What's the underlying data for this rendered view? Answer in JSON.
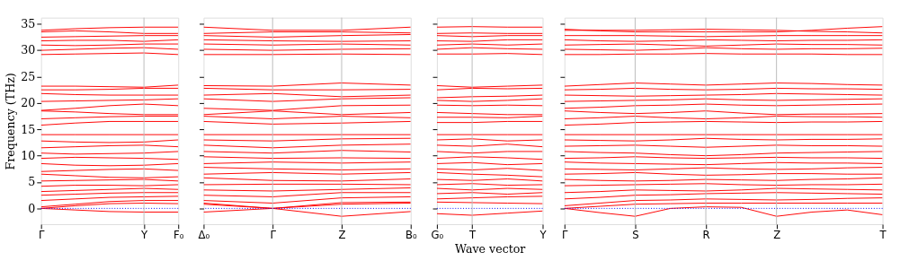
{
  "chart_data": [
    {
      "type": "line",
      "ylabel": "Frequency (THz)",
      "categories": [
        "Γ",
        null,
        null,
        "Y",
        "F₀"
      ],
      "ylim": [
        -3,
        36.2
      ],
      "yticks": [
        0,
        5,
        10,
        15,
        20,
        25,
        30,
        35
      ],
      "line_style": "solid",
      "marker": "none",
      "ref_lines": [
        {
          "axis": "y",
          "value": 0,
          "label": null,
          "color": "#0000ff",
          "line_style": "dotted"
        },
        {
          "axis": "x",
          "value": "Y",
          "label": null,
          "color": "#bbbbbb",
          "line_style": "solid"
        }
      ],
      "series": [
        {
          "color": "#ff0000",
          "values": [
            0,
            0.5,
            0.9,
            1.0,
            0.9
          ]
        },
        {
          "color": "#ff0000",
          "values": [
            0,
            -0.3,
            -0.6,
            -0.7,
            -0.7
          ]
        },
        {
          "color": "#ff0000",
          "values": [
            0.3,
            0.8,
            1.3,
            1.5,
            1.5
          ]
        },
        {
          "color": "#ff0000",
          "values": [
            1.5,
            1.8,
            2.1,
            2.2,
            2.3
          ]
        },
        {
          "color": "#ff0000",
          "values": [
            2.5,
            2.7,
            2.9,
            3,
            3
          ]
        },
        {
          "color": "#ff0000",
          "values": [
            3.2,
            3.4,
            3.6,
            3.8,
            3.6
          ]
        },
        {
          "color": "#ff0000",
          "values": [
            4.2,
            4.4,
            4.4,
            4.3,
            4.5
          ]
        },
        {
          "color": "#ff0000",
          "values": [
            5.2,
            5.3,
            5.4,
            5.5,
            5.2
          ]
        },
        {
          "color": "#ff0000",
          "values": [
            6.5,
            6.2,
            5.9,
            5.8,
            6
          ]
        },
        {
          "color": "#ff0000",
          "values": [
            7,
            7.2,
            7.4,
            7.5,
            7.2
          ]
        },
        {
          "color": "#ff0000",
          "values": [
            8.5,
            8.2,
            8.1,
            8.2,
            8.5
          ]
        },
        {
          "color": "#ff0000",
          "values": [
            9.5,
            9.7,
            9.6,
            9.5,
            9.3
          ]
        },
        {
          "color": "#ff0000",
          "values": [
            10.5,
            10.3,
            10.4,
            10.5,
            10.8
          ]
        },
        {
          "color": "#ff0000",
          "values": [
            11.5,
            11.7,
            11.9,
            12,
            11.7
          ]
        },
        {
          "color": "#ff0000",
          "values": [
            12.8,
            12.6,
            12.5,
            12.6,
            13
          ]
        },
        {
          "color": "#ff0000",
          "values": [
            14,
            14,
            14,
            14,
            14
          ]
        },
        {
          "color": "#ff0000",
          "values": [
            15.8,
            16.2,
            16.5,
            16.5,
            16.5
          ]
        },
        {
          "color": "#ff0000",
          "values": [
            17,
            17.2,
            17.4,
            17.5,
            17.5
          ]
        },
        {
          "color": "#ff0000",
          "values": [
            18.5,
            18.3,
            18,
            17.8,
            17.8
          ]
        },
        {
          "color": "#ff0000",
          "values": [
            18.6,
            19,
            19.5,
            19.8,
            19.5
          ]
        },
        {
          "color": "#ff0000",
          "values": [
            20.3,
            20.4,
            20.5,
            20.6,
            20.8
          ]
        },
        {
          "color": "#ff0000",
          "values": [
            21.8,
            21.6,
            21.5,
            21.5,
            21.5
          ]
        },
        {
          "color": "#ff0000",
          "values": [
            22.5,
            22.5,
            22.6,
            22.8,
            22.8
          ]
        },
        {
          "color": "#ff0000",
          "values": [
            23.2,
            23.2,
            23.1,
            23,
            23.4
          ]
        },
        {
          "color": "#ff0000",
          "values": [
            29.2,
            29.3,
            29.4,
            29.5,
            29.2
          ]
        },
        {
          "color": "#ff0000",
          "values": [
            30,
            30.2,
            30.4,
            30.5,
            30.2
          ]
        },
        {
          "color": "#ff0000",
          "values": [
            31,
            30.9,
            31,
            31.2,
            31.2
          ]
        },
        {
          "color": "#ff0000",
          "values": [
            31.8,
            31.9,
            31.9,
            31.7,
            32
          ]
        },
        {
          "color": "#ff0000",
          "values": [
            32.5,
            32.6,
            32.7,
            32.8,
            32.8
          ]
        },
        {
          "color": "#ff0000",
          "values": [
            33.5,
            33.7,
            33.5,
            33.2,
            33.2
          ]
        },
        {
          "color": "#ff0000",
          "values": [
            33.8,
            34.1,
            34.3,
            34.4,
            34.4
          ]
        }
      ]
    },
    {
      "type": "line",
      "categories": [
        "Δ₀",
        "Γ",
        "Z",
        "B₀"
      ],
      "ylim": [
        -3,
        36.2
      ],
      "yticks": [
        0,
        5,
        10,
        15,
        20,
        25,
        30,
        35
      ],
      "tick_labels": "x",
      "line_style": "solid",
      "marker": "none",
      "ref_lines": [
        {
          "axis": "y",
          "value": 0,
          "label": null,
          "color": "#0000ff",
          "line_style": "dotted"
        },
        {
          "axis": "x",
          "value": "Γ",
          "label": null,
          "color": "#bbbbbb",
          "line_style": "solid"
        },
        {
          "axis": "x",
          "value": "Z",
          "label": null,
          "color": "#bbbbbb",
          "line_style": "solid"
        }
      ],
      "series": [
        {
          "color": "#ff0000",
          "values": [
            -0.7,
            0,
            -1.5,
            -0.6
          ]
        },
        {
          "color": "#ff0000",
          "values": [
            1,
            0,
            0.8,
            1
          ]
        },
        {
          "color": "#ff0000",
          "values": [
            0.8,
            0,
            1.1,
            1.2
          ]
        },
        {
          "color": "#ff0000",
          "values": [
            1.5,
            1,
            2,
            2.2
          ]
        },
        {
          "color": "#ff0000",
          "values": [
            2.5,
            2.2,
            3,
            3
          ]
        },
        {
          "color": "#ff0000",
          "values": [
            3.5,
            3.3,
            3.6,
            3.9
          ]
        },
        {
          "color": "#ff0000",
          "values": [
            4.5,
            4.6,
            4.6,
            4.5
          ]
        },
        {
          "color": "#ff0000",
          "values": [
            5.8,
            5.3,
            5.2,
            5.6
          ]
        },
        {
          "color": "#ff0000",
          "values": [
            6.5,
            6.8,
            6.5,
            6.8
          ]
        },
        {
          "color": "#ff0000",
          "values": [
            7.8,
            7.5,
            7.3,
            7.5
          ]
        },
        {
          "color": "#ff0000",
          "values": [
            8.5,
            8.8,
            8.6,
            8.8
          ]
        },
        {
          "color": "#ff0000",
          "values": [
            9.8,
            9.5,
            9.6,
            9.5
          ]
        },
        {
          "color": "#ff0000",
          "values": [
            10.8,
            10.5,
            11,
            10.7
          ]
        },
        {
          "color": "#ff0000",
          "values": [
            12,
            11.5,
            12,
            12.2
          ]
        },
        {
          "color": "#ff0000",
          "values": [
            13,
            12.8,
            13.2,
            13.3
          ]
        },
        {
          "color": "#ff0000",
          "values": [
            14,
            14,
            14,
            14
          ]
        },
        {
          "color": "#ff0000",
          "values": [
            16.5,
            16,
            16.2,
            16.5
          ]
        },
        {
          "color": "#ff0000",
          "values": [
            17.5,
            17,
            17.5,
            17.2
          ]
        },
        {
          "color": "#ff0000",
          "values": [
            17.8,
            18.5,
            17.8,
            18.2
          ]
        },
        {
          "color": "#ff0000",
          "values": [
            19,
            18.6,
            19.5,
            19.6
          ]
        },
        {
          "color": "#ff0000",
          "values": [
            20.8,
            20.3,
            20.8,
            21
          ]
        },
        {
          "color": "#ff0000",
          "values": [
            21.5,
            21.8,
            21.2,
            21.5
          ]
        },
        {
          "color": "#ff0000",
          "values": [
            22.8,
            22.5,
            22.5,
            22.6
          ]
        },
        {
          "color": "#ff0000",
          "values": [
            23.3,
            23.2,
            23.8,
            23.4
          ]
        },
        {
          "color": "#ff0000",
          "values": [
            29.2,
            29.2,
            29.3,
            29.2
          ]
        },
        {
          "color": "#ff0000",
          "values": [
            30.2,
            30,
            30.2,
            30.3
          ]
        },
        {
          "color": "#ff0000",
          "values": [
            31.2,
            31,
            31.2,
            31
          ]
        },
        {
          "color": "#ff0000",
          "values": [
            32,
            31.8,
            31.7,
            31.8
          ]
        },
        {
          "color": "#ff0000",
          "values": [
            32.8,
            32.5,
            32.8,
            33
          ]
        },
        {
          "color": "#ff0000",
          "values": [
            33.2,
            33.5,
            33.5,
            33.3
          ]
        },
        {
          "color": "#ff0000",
          "values": [
            34.4,
            33.8,
            33.8,
            34.4
          ]
        }
      ]
    },
    {
      "type": "line",
      "xlabel": "Wave vector",
      "categories": [
        "G₀",
        "T",
        null,
        "Y"
      ],
      "ylim": [
        -3,
        36.2
      ],
      "yticks": [
        0,
        5,
        10,
        15,
        20,
        25,
        30,
        35
      ],
      "tick_labels": "x",
      "line_style": "solid",
      "marker": "none",
      "ref_lines": [
        {
          "axis": "y",
          "value": 0,
          "label": null,
          "color": "#0000ff",
          "line_style": "dotted"
        },
        {
          "axis": "x",
          "value": "T",
          "label": null,
          "color": "#bbbbbb",
          "line_style": "solid"
        }
      ],
      "series": [
        {
          "color": "#ff0000",
          "values": [
            -1,
            -1.3,
            -0.9,
            -0.5
          ]
        },
        {
          "color": "#ff0000",
          "values": [
            1.2,
            1.1,
            1,
            0.9
          ]
        },
        {
          "color": "#ff0000",
          "values": [
            1.8,
            2,
            2.2,
            2.3
          ]
        },
        {
          "color": "#ff0000",
          "values": [
            2.8,
            3,
            2.7,
            3
          ]
        },
        {
          "color": "#ff0000",
          "values": [
            3.8,
            3.5,
            3.8,
            3.6
          ]
        },
        {
          "color": "#ff0000",
          "values": [
            4.5,
            4.7,
            4.4,
            4.5
          ]
        },
        {
          "color": "#ff0000",
          "values": [
            5.5,
            5.3,
            5.6,
            5.2
          ]
        },
        {
          "color": "#ff0000",
          "values": [
            6.8,
            6.5,
            6.3,
            6
          ]
        },
        {
          "color": "#ff0000",
          "values": [
            7.5,
            7.3,
            7.6,
            7.2
          ]
        },
        {
          "color": "#ff0000",
          "values": [
            8.5,
            8.7,
            8.3,
            8.5
          ]
        },
        {
          "color": "#ff0000",
          "values": [
            9.5,
            9.8,
            9.6,
            9.3
          ]
        },
        {
          "color": "#ff0000",
          "values": [
            10.8,
            10.5,
            10.8,
            10.8
          ]
        },
        {
          "color": "#ff0000",
          "values": [
            12,
            11.8,
            12.2,
            11.7
          ]
        },
        {
          "color": "#ff0000",
          "values": [
            13,
            13.2,
            12.8,
            13
          ]
        },
        {
          "color": "#ff0000",
          "values": [
            14,
            14,
            14,
            14
          ]
        },
        {
          "color": "#ff0000",
          "values": [
            16.3,
            16.3,
            16.5,
            16.5
          ]
        },
        {
          "color": "#ff0000",
          "values": [
            17.3,
            17.3,
            17.2,
            17.5
          ]
        },
        {
          "color": "#ff0000",
          "values": [
            18.2,
            18,
            17.8,
            17.8
          ]
        },
        {
          "color": "#ff0000",
          "values": [
            19.6,
            19.5,
            19.6,
            19.5
          ]
        },
        {
          "color": "#ff0000",
          "values": [
            20.5,
            20.3,
            20.5,
            20.8
          ]
        },
        {
          "color": "#ff0000",
          "values": [
            21,
            21.2,
            21.3,
            21.5
          ]
        },
        {
          "color": "#ff0000",
          "values": [
            22.5,
            22.8,
            22.7,
            22.8
          ]
        },
        {
          "color": "#ff0000",
          "values": [
            23.3,
            23,
            23.2,
            23.4
          ]
        },
        {
          "color": "#ff0000",
          "values": [
            29.3,
            29.3,
            29.4,
            29.2
          ]
        },
        {
          "color": "#ff0000",
          "values": [
            30.2,
            30.5,
            30.3,
            30.2
          ]
        },
        {
          "color": "#ff0000",
          "values": [
            31,
            31.2,
            31,
            31.2
          ]
        },
        {
          "color": "#ff0000",
          "values": [
            31.8,
            31.7,
            32,
            32
          ]
        },
        {
          "color": "#ff0000",
          "values": [
            32.8,
            32.6,
            32.8,
            32.8
          ]
        },
        {
          "color": "#ff0000",
          "values": [
            33.2,
            33.3,
            33.2,
            33.2
          ]
        },
        {
          "color": "#ff0000",
          "values": [
            34.4,
            34.5,
            34.4,
            34.4
          ]
        }
      ]
    },
    {
      "type": "line",
      "categories": [
        "Γ",
        null,
        "S",
        null,
        "R",
        null,
        "Z",
        null,
        null,
        "T"
      ],
      "ylim": [
        -3,
        36.2
      ],
      "yticks": [
        0,
        5,
        10,
        15,
        20,
        25,
        30,
        35
      ],
      "tick_labels": "x",
      "line_style": "solid",
      "marker": "none",
      "ref_lines": [
        {
          "axis": "y",
          "value": 0,
          "label": null,
          "color": "#0000ff",
          "line_style": "dotted"
        },
        {
          "axis": "x",
          "value": "S",
          "label": null,
          "color": "#bbbbbb",
          "line_style": "solid"
        },
        {
          "axis": "x",
          "value": "R",
          "label": null,
          "color": "#bbbbbb",
          "line_style": "solid"
        },
        {
          "axis": "x",
          "value": "Z",
          "label": null,
          "color": "#bbbbbb",
          "line_style": "solid"
        }
      ],
      "series": [
        {
          "color": "#ff0000",
          "values": [
            0,
            -0.8,
            -1.5,
            0,
            0.3,
            0.2,
            -1.5,
            -0.7,
            -0.3,
            -1.2
          ]
        },
        {
          "color": "#ff0000",
          "values": [
            0,
            0.4,
            0.8,
            0.9,
            1,
            1,
            1,
            1,
            1,
            1
          ]
        },
        {
          "color": "#ff0000",
          "values": [
            0.5,
            1,
            1.5,
            1.6,
            1.8,
            1.7,
            1.6,
            1.7,
            1.9,
            2
          ]
        },
        {
          "color": "#ff0000",
          "values": [
            1.8,
            2.1,
            2.5,
            2.6,
            2.8,
            2.9,
            3,
            2.9,
            2.8,
            2.7
          ]
        },
        {
          "color": "#ff0000",
          "values": [
            3,
            3.2,
            3.5,
            3.4,
            3.3,
            3.5,
            3.8,
            3.7,
            3.6,
            3.5
          ]
        },
        {
          "color": "#ff0000",
          "values": [
            4.3,
            4.4,
            4.5,
            4.6,
            4.7,
            4.5,
            4.4,
            4.5,
            4.5,
            4.6
          ]
        },
        {
          "color": "#ff0000",
          "values": [
            5.5,
            5.3,
            5.2,
            5.3,
            5.5,
            5.4,
            5.3,
            5.5,
            5.6,
            5.8
          ]
        },
        {
          "color": "#ff0000",
          "values": [
            6.5,
            6.6,
            6.8,
            6.5,
            6.3,
            6.4,
            6.6,
            6.6,
            6.5,
            6.5
          ]
        },
        {
          "color": "#ff0000",
          "values": [
            7.5,
            7.4,
            7.3,
            7.5,
            7.7,
            7.5,
            7.4,
            7.5,
            7.7,
            7.8
          ]
        },
        {
          "color": "#ff0000",
          "values": [
            8.8,
            8.6,
            8.5,
            8.4,
            8.3,
            8.5,
            8.7,
            8.6,
            8.6,
            8.5
          ]
        },
        {
          "color": "#ff0000",
          "values": [
            9.5,
            9.6,
            9.8,
            9.6,
            9.5,
            9.6,
            9.7,
            9.6,
            9.6,
            9.5
          ]
        },
        {
          "color": "#ff0000",
          "values": [
            10.8,
            10.6,
            10.5,
            10.2,
            10,
            10.2,
            10.5,
            10.6,
            10.7,
            10.8
          ]
        },
        {
          "color": "#ff0000",
          "values": [
            11.8,
            11.9,
            12,
            11.8,
            11.6,
            11.8,
            12,
            11.9,
            11.9,
            11.8
          ]
        },
        {
          "color": "#ff0000",
          "values": [
            13,
            12.9,
            12.8,
            13,
            13.3,
            13.1,
            13,
            13.1,
            13.1,
            13.2
          ]
        },
        {
          "color": "#ff0000",
          "values": [
            14,
            14,
            14,
            14,
            14,
            14,
            14,
            14,
            14,
            14
          ]
        },
        {
          "color": "#ff0000",
          "values": [
            15.8,
            16,
            16.3,
            16.4,
            16.5,
            16.4,
            16.3,
            16.4,
            16.4,
            16.5
          ]
        },
        {
          "color": "#ff0000",
          "values": [
            17,
            17.2,
            17.5,
            17.2,
            17,
            17.2,
            17.5,
            17.4,
            17.4,
            17.3
          ]
        },
        {
          "color": "#ff0000",
          "values": [
            18.5,
            18.2,
            18,
            18.2,
            18.5,
            18.1,
            17.8,
            17.9,
            17.9,
            18
          ]
        },
        {
          "color": "#ff0000",
          "values": [
            19,
            19.2,
            19.5,
            19.6,
            19.8,
            19.6,
            19.5,
            19.6,
            19.7,
            19.8
          ]
        },
        {
          "color": "#ff0000",
          "values": [
            20.3,
            20.4,
            20.5,
            20.6,
            20.8,
            20.6,
            20.5,
            20.6,
            20.7,
            20.8
          ]
        },
        {
          "color": "#ff0000",
          "values": [
            21.5,
            21.4,
            21.3,
            21.4,
            21.5,
            21.6,
            21.8,
            21.7,
            21.6,
            21.5
          ]
        },
        {
          "color": "#ff0000",
          "values": [
            22.5,
            22.6,
            22.8,
            22.6,
            22.5,
            22.6,
            22.8,
            22.7,
            22.7,
            22.6
          ]
        },
        {
          "color": "#ff0000",
          "values": [
            23.2,
            23.5,
            23.8,
            23.6,
            23.4,
            23.6,
            23.8,
            23.7,
            23.5,
            23.4
          ]
        },
        {
          "color": "#ff0000",
          "values": [
            29.2,
            29.2,
            29.3,
            29.3,
            29.4,
            29.3,
            29.3,
            29.3,
            29.2,
            29.2
          ]
        },
        {
          "color": "#ff0000",
          "values": [
            30.2,
            30.1,
            30,
            30.2,
            30.5,
            30.3,
            30.2,
            30.3,
            30.3,
            30.4
          ]
        },
        {
          "color": "#ff0000",
          "values": [
            31,
            31.1,
            31.2,
            31,
            30.8,
            31,
            31.2,
            31.1,
            31.1,
            31
          ]
        },
        {
          "color": "#ff0000",
          "values": [
            32,
            31.8,
            31.7,
            31.8,
            32,
            31.9,
            31.8,
            31.9,
            31.9,
            32
          ]
        },
        {
          "color": "#ff0000",
          "values": [
            32.8,
            32.8,
            32.8,
            32.7,
            32.6,
            32.7,
            32.8,
            32.8,
            32.8,
            32.8
          ]
        },
        {
          "color": "#ff0000",
          "values": [
            33.8,
            33.8,
            33.8,
            33.9,
            34,
            33.9,
            33.8,
            33.6,
            33.5,
            33.3
          ]
        },
        {
          "color": "#ff0000",
          "values": [
            34,
            33.7,
            33.5,
            33.5,
            33.5,
            33.5,
            33.5,
            33.8,
            34.2,
            34.5
          ]
        }
      ]
    }
  ]
}
